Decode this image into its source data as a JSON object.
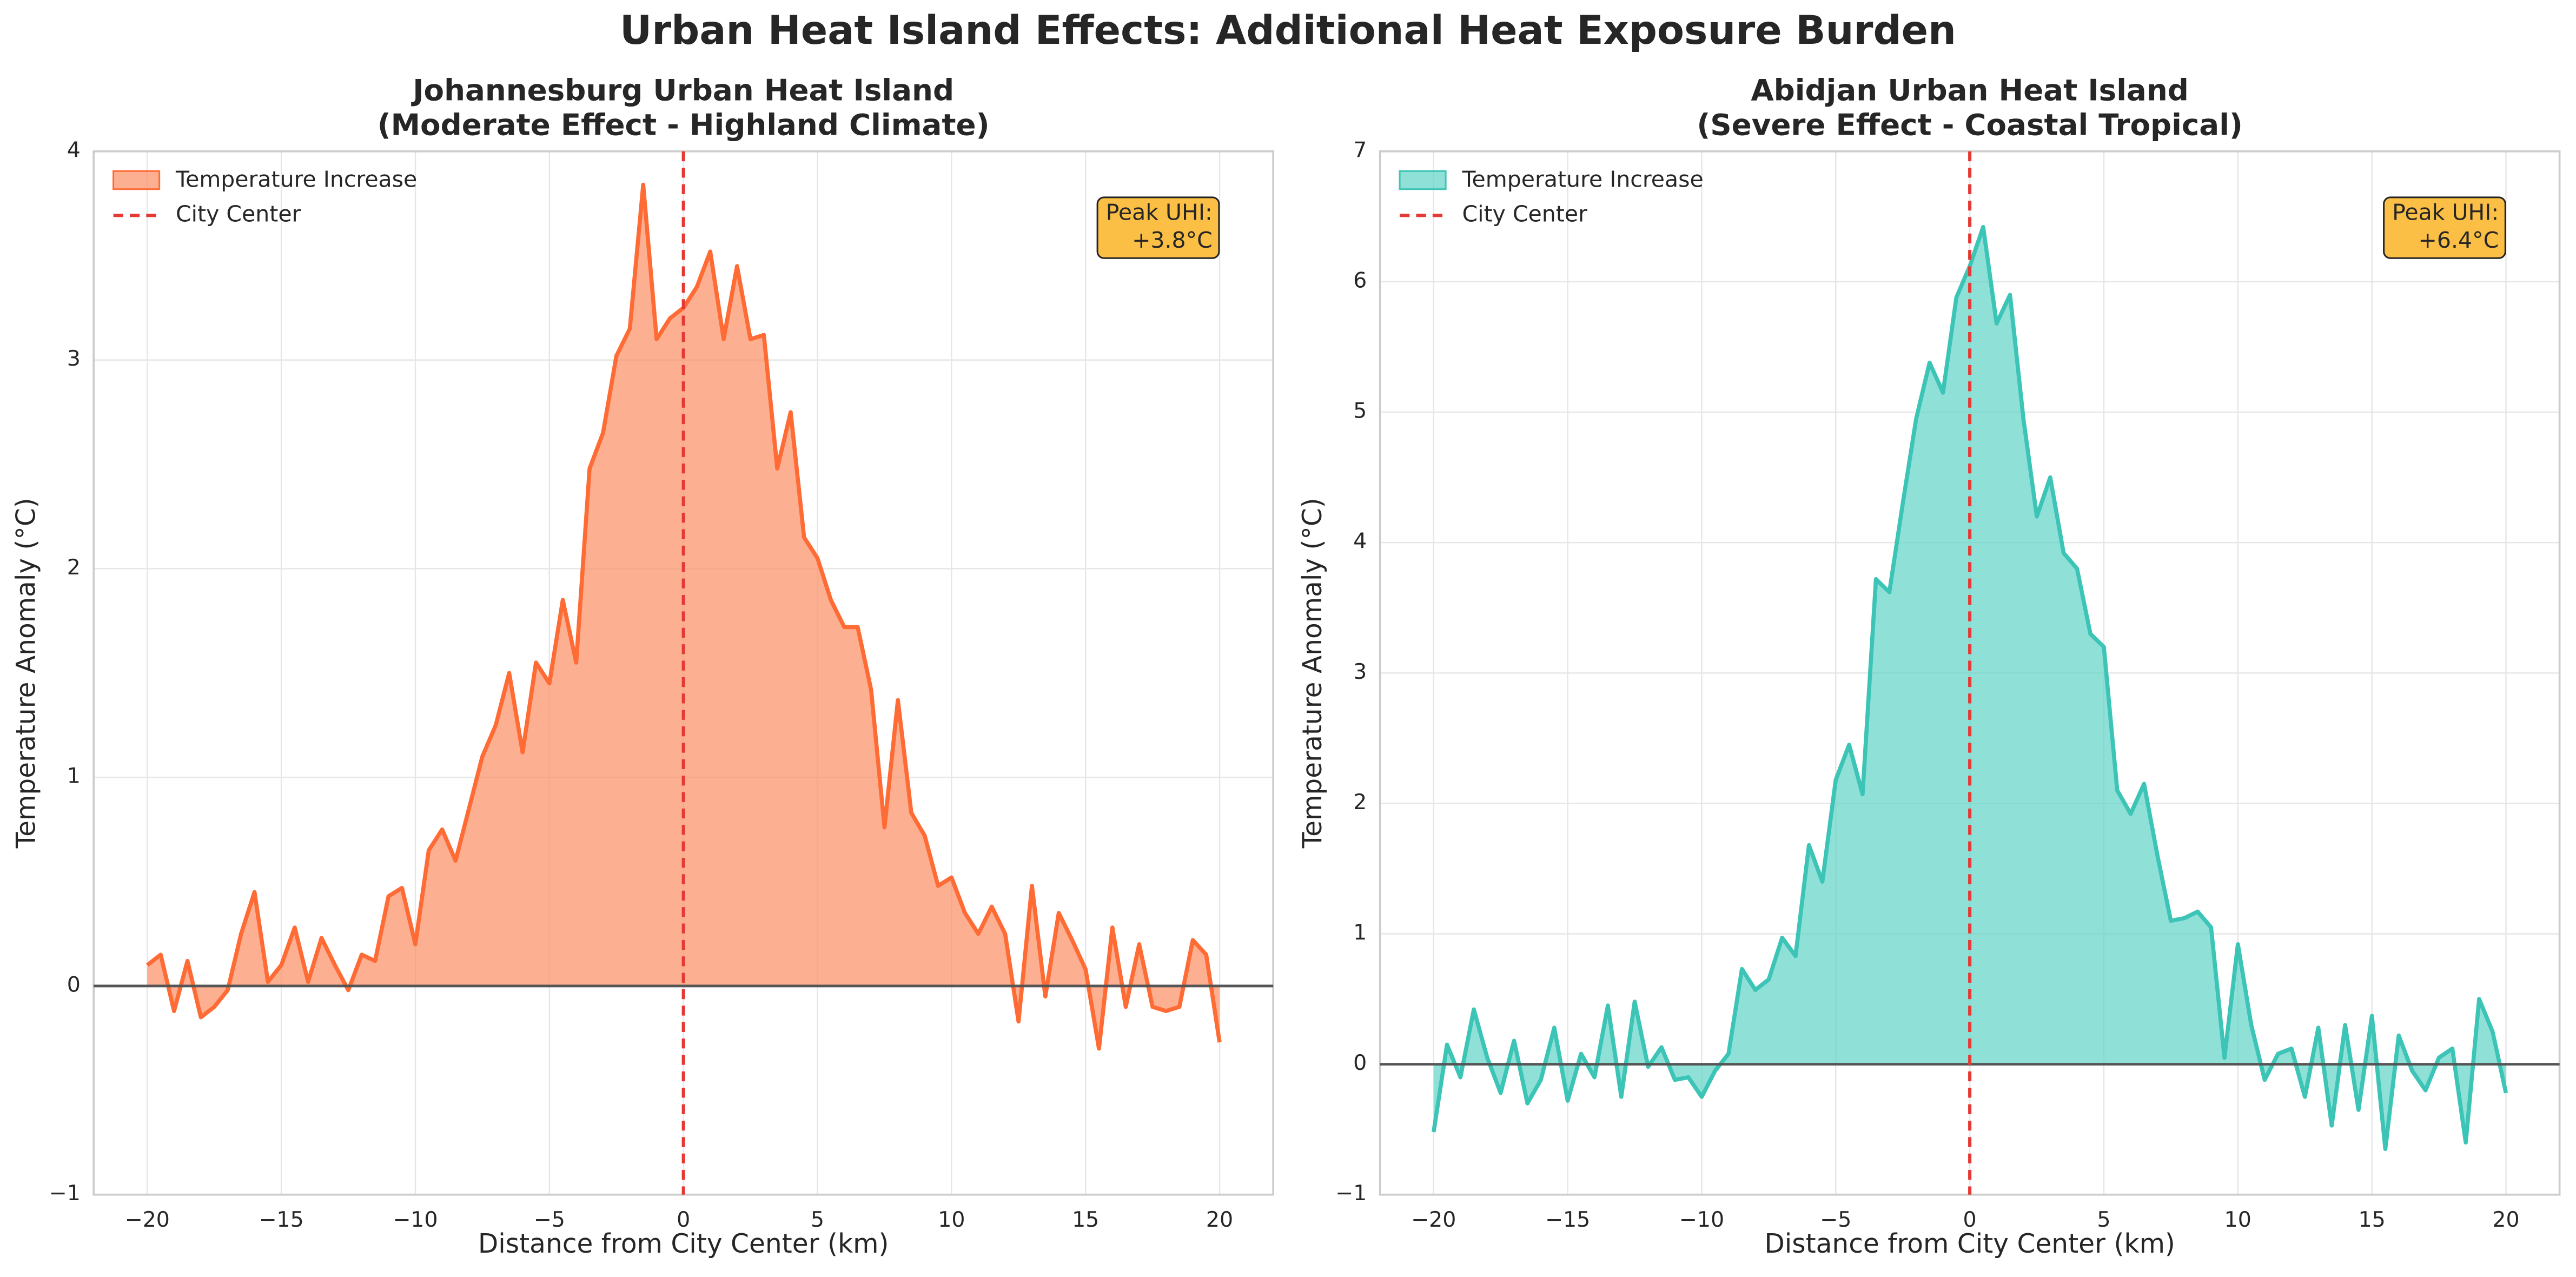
{
  "title": "Urban Heat Island Effects: Additional Heat Exposure Burden",
  "chart_data": [
    {
      "type": "area",
      "title": "Johannesburg Urban Heat Island\n(Moderate Effect - Highland Climate)",
      "xlabel": "Distance from City Center (km)",
      "ylabel": "Temperature Anomaly (°C)",
      "x": [
        -20,
        -19.5,
        -19,
        -18.5,
        -18,
        -17.5,
        -17,
        -16.5,
        -16,
        -15.5,
        -15,
        -14.5,
        -14,
        -13.5,
        -13,
        -12.5,
        -12,
        -11.5,
        -11,
        -10.5,
        -10,
        -9.5,
        -9,
        -8.5,
        -8,
        -7.5,
        -7,
        -6.5,
        -6,
        -5.5,
        -5,
        -4.5,
        -4,
        -3.5,
        -3,
        -2.5,
        -2,
        -1.5,
        -1,
        -0.5,
        0,
        0.5,
        1,
        1.5,
        2,
        2.5,
        3,
        3.5,
        4,
        4.5,
        5,
        5.5,
        6,
        6.5,
        7,
        7.5,
        8,
        8.5,
        9,
        9.5,
        10,
        10.5,
        11,
        11.5,
        12,
        12.5,
        13,
        13.5,
        14,
        14.5,
        15,
        15.5,
        16,
        16.5,
        17,
        17.5,
        18,
        18.5,
        19,
        19.5,
        20
      ],
      "series": [
        {
          "name": "Temperature Increase",
          "color": "#ff6b35",
          "fill": "#fc8d62",
          "values": [
            0.1,
            0.15,
            -0.12,
            0.12,
            -0.15,
            -0.1,
            -0.02,
            0.25,
            0.45,
            0.02,
            0.1,
            0.28,
            0.02,
            0.23,
            0.1,
            -0.02,
            0.15,
            0.12,
            0.43,
            0.47,
            0.2,
            0.65,
            0.75,
            0.6,
            0.85,
            1.1,
            1.25,
            1.5,
            1.12,
            1.55,
            1.45,
            1.85,
            1.55,
            2.48,
            2.65,
            3.02,
            3.15,
            3.84,
            3.1,
            3.2,
            3.25,
            3.35,
            3.52,
            3.1,
            3.45,
            3.1,
            3.12,
            2.48,
            2.75,
            2.15,
            2.05,
            1.85,
            1.72,
            1.72,
            1.42,
            0.76,
            1.37,
            0.83,
            0.72,
            0.48,
            0.52,
            0.35,
            0.25,
            0.38,
            0.25,
            -0.17,
            0.48,
            -0.05,
            0.35,
            0.22,
            0.08,
            -0.3,
            0.28,
            -0.1,
            0.2,
            -0.1,
            -0.12,
            -0.1,
            0.22,
            0.15,
            -0.27
          ]
        }
      ],
      "center_line": {
        "name": "City Center",
        "x": 0,
        "color": "#e53935"
      },
      "annotation": [
        "Peak UHI:",
        "+3.8°C"
      ],
      "xlim": [
        -22,
        22
      ],
      "ylim": [
        -1,
        4
      ],
      "xticks": [
        {
          "value": -20,
          "label": "−20"
        },
        {
          "value": -15,
          "label": "−15"
        },
        {
          "value": -10,
          "label": "−10"
        },
        {
          "value": -5,
          "label": "−5"
        },
        0,
        5,
        10,
        15,
        20
      ],
      "yticks": [
        {
          "value": -1,
          "label": "−1"
        },
        0,
        1,
        2,
        3,
        4
      ],
      "grid": true,
      "legend": "upper-left"
    },
    {
      "type": "area",
      "title": "Abidjan Urban Heat Island\n(Severe Effect - Coastal Tropical)",
      "xlabel": "Distance from City Center (km)",
      "ylabel": "Temperature Anomaly (°C)",
      "x": [
        -20,
        -19.5,
        -19,
        -18.5,
        -18,
        -17.5,
        -17,
        -16.5,
        -16,
        -15.5,
        -15,
        -14.5,
        -14,
        -13.5,
        -13,
        -12.5,
        -12,
        -11.5,
        -11,
        -10.5,
        -10,
        -9.5,
        -9,
        -8.5,
        -8,
        -7.5,
        -7,
        -6.5,
        -6,
        -5.5,
        -5,
        -4.5,
        -4,
        -3.5,
        -3,
        -2.5,
        -2,
        -1.5,
        -1,
        -0.5,
        0,
        0.5,
        1,
        1.5,
        2,
        2.5,
        3,
        3.5,
        4,
        4.5,
        5,
        5.5,
        6,
        6.5,
        7,
        7.5,
        8,
        8.5,
        9,
        9.5,
        10,
        10.5,
        11,
        11.5,
        12,
        12.5,
        13,
        13.5,
        14,
        14.5,
        15,
        15.5,
        16,
        16.5,
        17,
        17.5,
        18,
        18.5,
        19,
        19.5,
        20
      ],
      "series": [
        {
          "name": "Temperature Increase",
          "color": "#3cc4b6",
          "fill": "#5fd3c6",
          "values": [
            -0.52,
            0.15,
            -0.1,
            0.42,
            0.05,
            -0.22,
            0.18,
            -0.3,
            -0.12,
            0.28,
            -0.28,
            0.08,
            -0.1,
            0.45,
            -0.25,
            0.48,
            -0.02,
            0.13,
            -0.12,
            -0.1,
            -0.25,
            -0.05,
            0.08,
            0.73,
            0.57,
            0.65,
            0.97,
            0.83,
            1.68,
            1.4,
            2.18,
            2.45,
            2.07,
            3.72,
            3.62,
            4.3,
            4.95,
            5.38,
            5.15,
            5.88,
            6.12,
            6.42,
            5.68,
            5.9,
            4.95,
            4.2,
            4.5,
            3.92,
            3.8,
            3.3,
            3.2,
            2.1,
            1.92,
            2.15,
            1.6,
            1.1,
            1.12,
            1.17,
            1.05,
            0.05,
            0.92,
            0.3,
            -0.12,
            0.08,
            0.12,
            -0.25,
            0.28,
            -0.47,
            0.3,
            -0.35,
            0.37,
            -0.65,
            0.22,
            -0.05,
            -0.2,
            0.05,
            0.12,
            -0.6,
            0.5,
            0.25,
            -0.22
          ]
        }
      ],
      "center_line": {
        "name": "City Center",
        "x": 0,
        "color": "#e53935"
      },
      "annotation": [
        "Peak UHI:",
        "+6.4°C"
      ],
      "xlim": [
        -22,
        22
      ],
      "ylim": [
        -1,
        7
      ],
      "xticks": [
        {
          "value": -20,
          "label": "−20"
        },
        {
          "value": -15,
          "label": "−15"
        },
        {
          "value": -10,
          "label": "−10"
        },
        {
          "value": -5,
          "label": "−5"
        },
        0,
        5,
        10,
        15,
        20
      ],
      "yticks": [
        {
          "value": -1,
          "label": "−1"
        },
        0,
        1,
        2,
        3,
        4,
        5,
        6,
        7
      ],
      "grid": true,
      "legend": "upper-left"
    }
  ]
}
